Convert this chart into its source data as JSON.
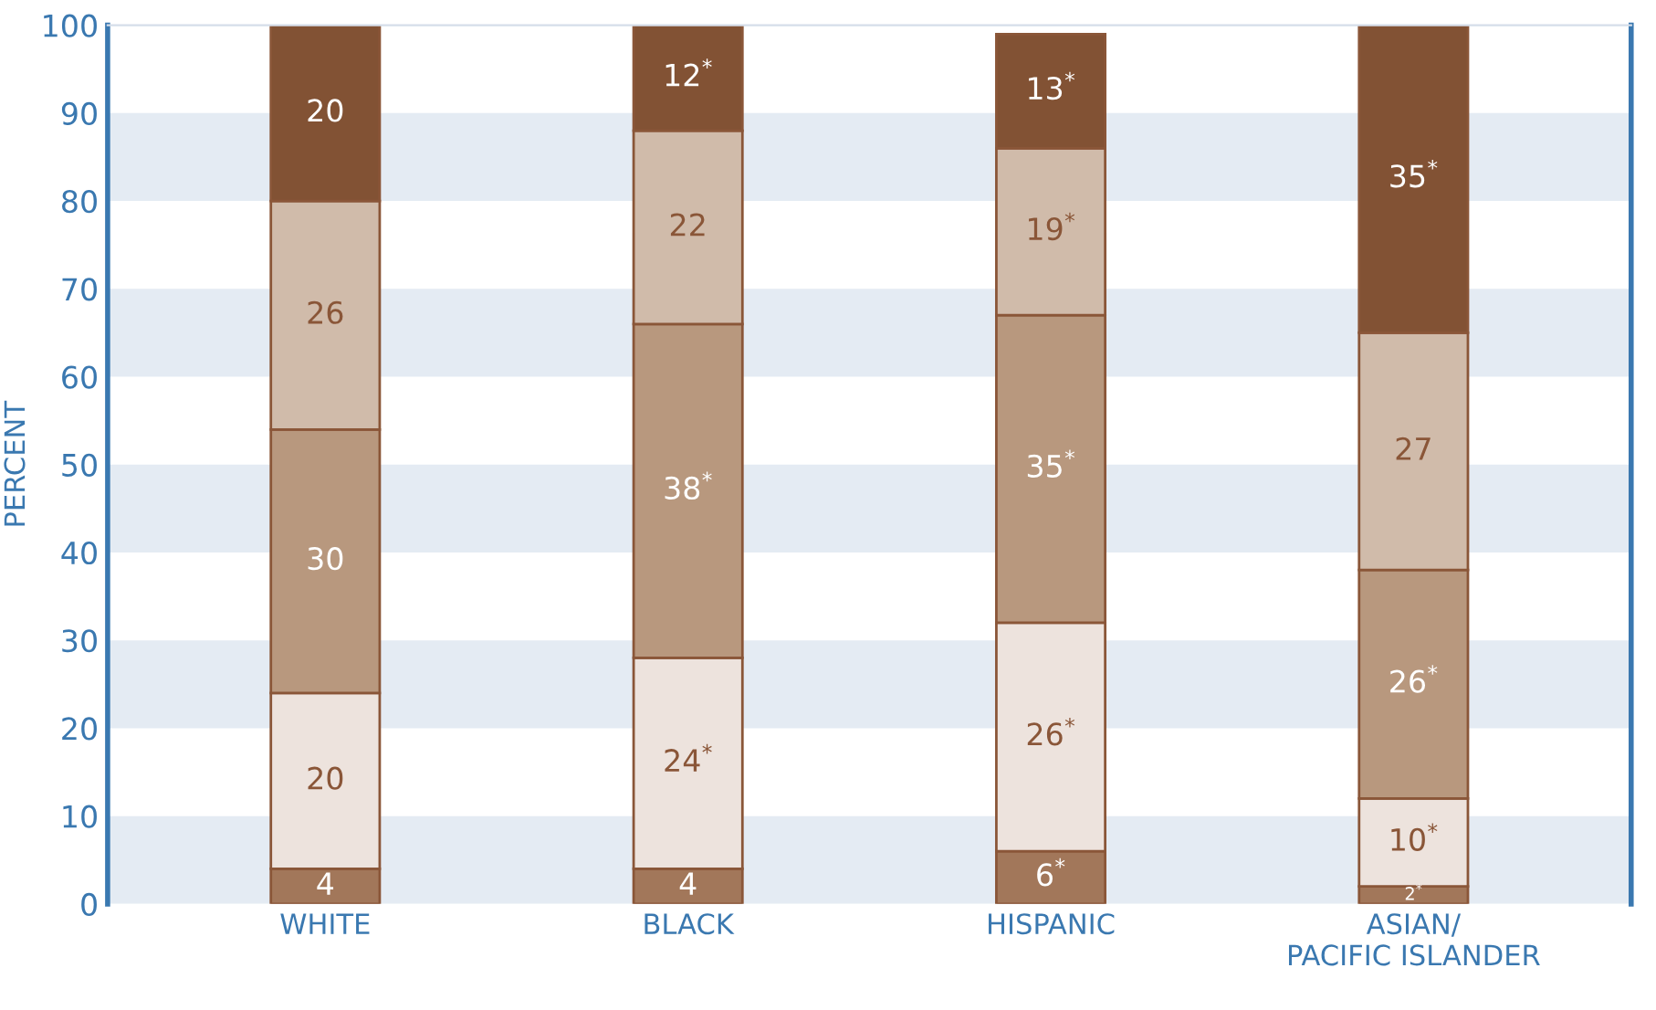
{
  "chart_data": {
    "type": "bar",
    "stacked": true,
    "ylabel": "PERCENT",
    "categories": [
      "WHITE",
      "BLACK",
      "HISPANIC",
      "ASIAN/\nPACIFIC ISLANDER"
    ],
    "series": [
      {
        "color": "#a2775a",
        "values": [
          4,
          4,
          6,
          2
        ],
        "value_labels": [
          "4",
          "4",
          "6$^{*}$",
          "2$^{*}$"
        ]
      },
      {
        "color": "#ede3dd",
        "values": [
          20,
          24,
          26,
          10
        ],
        "value_labels": [
          "20",
          "24$^{*}$",
          "26$^{*}$",
          "10$^{*}$"
        ]
      },
      {
        "color": "#b8987e",
        "values": [
          30,
          38,
          35,
          26
        ],
        "value_labels": [
          "30",
          "38$^{*}$",
          "35$^{*}$",
          "26$^{*}$"
        ]
      },
      {
        "color": "#d0bbaa",
        "values": [
          26,
          22,
          19,
          27
        ],
        "value_labels": [
          "26",
          "22",
          "19$^{*}$",
          "27"
        ]
      },
      {
        "color": "#825234",
        "values": [
          20,
          12,
          13,
          35
        ],
        "value_labels": [
          "20",
          "12$^{*}$",
          "13$^{*}$",
          "35$^{*}$"
        ]
      }
    ],
    "ylim": [
      0,
      100
    ],
    "yticks": [
      0,
      10,
      20,
      30,
      40,
      50,
      60,
      70,
      80,
      90,
      100
    ],
    "bands": [
      {
        "axis": "y",
        "from": 0,
        "to": 10,
        "color": "#e4ebf3"
      },
      {
        "axis": "y",
        "from": 20,
        "to": 30,
        "color": "#e4ebf3"
      },
      {
        "axis": "y",
        "from": 40,
        "to": 50,
        "color": "#e4ebf3"
      },
      {
        "axis": "y",
        "from": 60,
        "to": 70,
        "color": "#e4ebf3"
      },
      {
        "axis": "y",
        "from": 80,
        "to": 90,
        "color": "#e4ebf3"
      }
    ],
    "grid": false,
    "legend": false
  }
}
